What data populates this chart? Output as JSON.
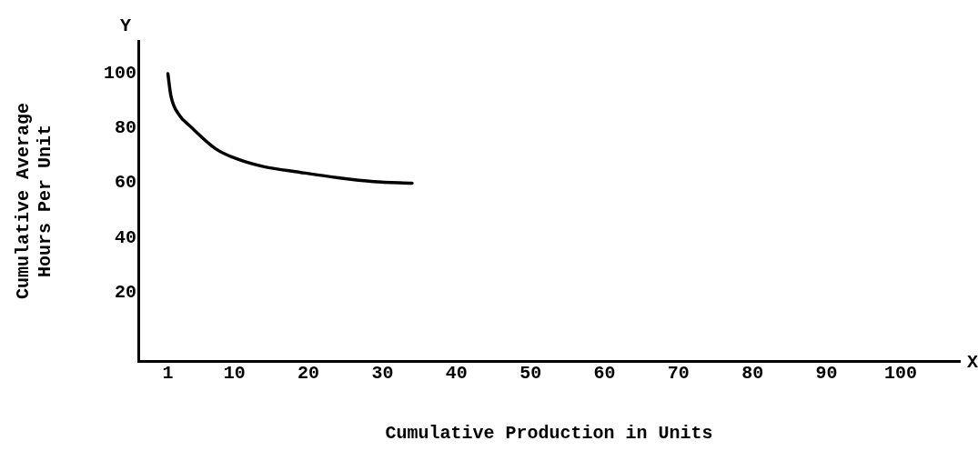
{
  "chart_data": {
    "type": "line",
    "xlabel": "Cumulative Production in Units",
    "ylabel": "Cumulative Average\nHours Per Unit",
    "annotations": [
      "Y",
      "X"
    ],
    "x": [
      1,
      1.4,
      2.5,
      4.1,
      7.5,
      10.4,
      14,
      18.8,
      24,
      28.8,
      34
    ],
    "series": [
      {
        "color": "#000000",
        "values": [
          100,
          92,
          85,
          80.6,
          72.5,
          68.8,
          66,
          64,
          62,
          60.6,
          60
        ]
      }
    ],
    "xlim": [
      -3,
      108
    ],
    "xticks": [
      1,
      10,
      20,
      30,
      40,
      50,
      60,
      70,
      80,
      90,
      100
    ],
    "ylim": [
      -5,
      112
    ],
    "yticks": [
      20,
      40,
      60,
      80,
      100
    ],
    "grid": false,
    "legend": false,
    "marker": "none",
    "line_style": "solid"
  }
}
